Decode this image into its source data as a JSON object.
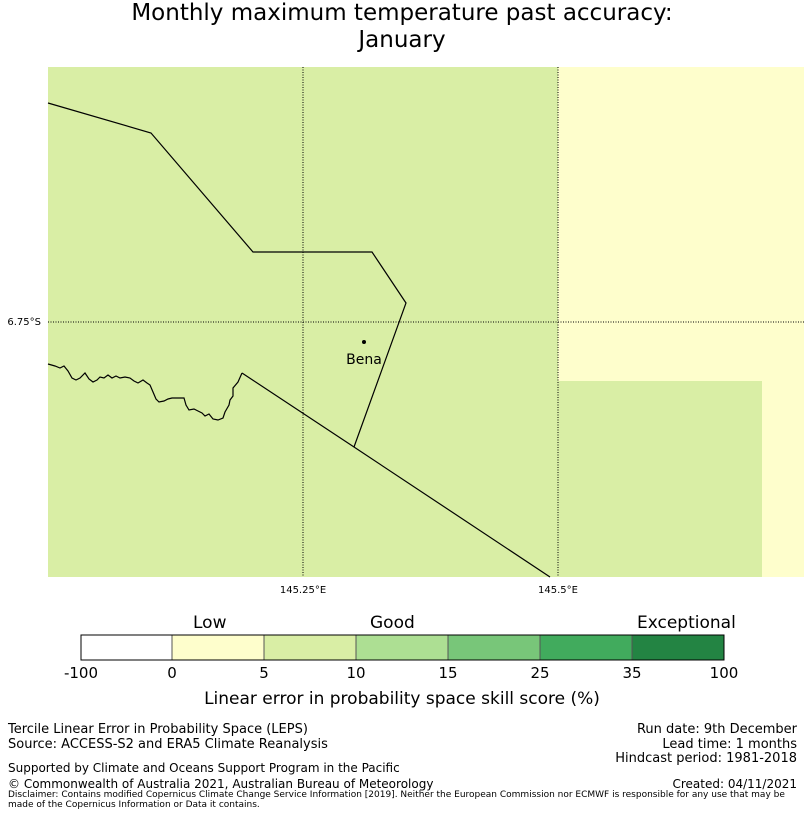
{
  "title": {
    "line1": "Monthly maximum temperature past accuracy:",
    "line2": "January"
  },
  "map": {
    "lon_ticks": [
      "145.25°E",
      "145.5°E"
    ],
    "lat_ticks": [
      "6.75°S"
    ],
    "place": {
      "name": "Bena"
    },
    "colors": {
      "good_fill": "#d9eea5",
      "low_fill": "#fefecc",
      "border_line": "#000000",
      "gridline": "#000000"
    }
  },
  "colorbar": {
    "categories": [
      "Low",
      "Good",
      "Exceptional"
    ],
    "ticks": [
      "-100",
      "0",
      "5",
      "10",
      "15",
      "25",
      "35",
      "100"
    ],
    "segments": [
      {
        "from": "-100",
        "to": "0",
        "color": "#ffffff"
      },
      {
        "from": "0",
        "to": "5",
        "color": "#fefecc"
      },
      {
        "from": "5",
        "to": "10",
        "color": "#d9eea5"
      },
      {
        "from": "10",
        "to": "15",
        "color": "#addf93"
      },
      {
        "from": "15",
        "to": "25",
        "color": "#78c679"
      },
      {
        "from": "25",
        "to": "35",
        "color": "#41ab5d"
      },
      {
        "from": "35",
        "to": "100",
        "color": "#238443"
      }
    ],
    "label": "Linear error in probability space skill score (%)"
  },
  "footer": {
    "left1": "Tercile Linear Error in Probability Space (LEPS)",
    "left2": "Source: ACCESS-S2 and ERA5 Climate Reanalysis",
    "support": "Supported by Climate and Oceans Support Program in the Pacific",
    "copyright": "© Commonwealth of Australia 2021, Australian Bureau of Meteorology",
    "run_date": "Run date: 9th December",
    "lead_time": "Lead time: 1 months",
    "hindcast": "Hindcast period: 1981-2018",
    "created": "Created: 04/11/2021",
    "disclaimer": "Disclaimer: Contains modified Copernicus Climate Change Service Information [2019]. Neither the European Commission nor ECMWF is responsible for any use that may be made of the Copernicus Information or Data it contains."
  }
}
